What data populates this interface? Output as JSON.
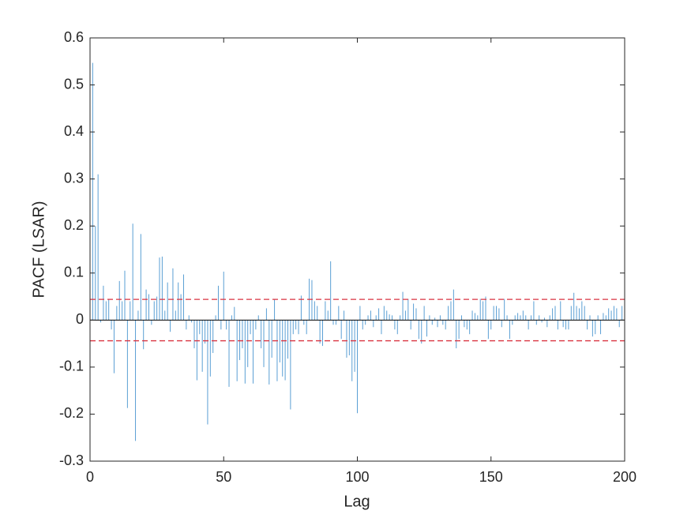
{
  "chart_data": {
    "type": "stem",
    "xlabel": "Lag",
    "ylabel": "PACF (LSAR)",
    "xlim": [
      0,
      200
    ],
    "xticks": [
      0,
      50,
      100,
      150,
      200
    ],
    "ylim": [
      -0.3,
      0.6
    ],
    "yticks": [
      -0.3,
      -0.2,
      -0.1,
      0,
      0.1,
      0.2,
      0.3,
      0.4,
      0.5,
      0.6
    ],
    "color": "#5a9fd4",
    "bounds": [
      0.044,
      -0.044
    ],
    "bounds_color": "#d93340",
    "x": [
      1,
      2,
      3,
      4,
      5,
      6,
      7,
      8,
      9,
      10,
      11,
      12,
      13,
      14,
      15,
      16,
      17,
      18,
      19,
      20,
      21,
      22,
      23,
      24,
      25,
      26,
      27,
      28,
      29,
      30,
      31,
      32,
      33,
      34,
      35,
      36,
      37,
      38,
      39,
      40,
      41,
      42,
      43,
      44,
      45,
      46,
      47,
      48,
      49,
      50,
      51,
      52,
      53,
      54,
      55,
      56,
      57,
      58,
      59,
      60,
      61,
      62,
      63,
      64,
      65,
      66,
      67,
      68,
      69,
      70,
      71,
      72,
      73,
      74,
      75,
      76,
      77,
      78,
      79,
      80,
      81,
      82,
      83,
      84,
      85,
      86,
      87,
      88,
      89,
      90,
      91,
      92,
      93,
      94,
      95,
      96,
      97,
      98,
      99,
      100,
      101,
      102,
      103,
      104,
      105,
      106,
      107,
      108,
      109,
      110,
      111,
      112,
      113,
      114,
      115,
      116,
      117,
      118,
      119,
      120,
      121,
      122,
      123,
      124,
      125,
      126,
      127,
      128,
      129,
      130,
      131,
      132,
      133,
      134,
      135,
      136,
      137,
      138,
      139,
      140,
      141,
      142,
      143,
      144,
      145,
      146,
      147,
      148,
      149,
      150,
      151,
      152,
      153,
      154,
      155,
      156,
      157,
      158,
      159,
      160,
      161,
      162,
      163,
      164,
      165,
      166,
      167,
      168,
      169,
      170,
      171,
      172,
      173,
      174,
      175,
      176,
      177,
      178,
      179,
      180,
      181,
      182,
      183,
      184,
      185,
      186,
      187,
      188,
      189,
      190,
      191,
      192,
      193,
      194,
      195,
      196,
      197,
      198,
      199,
      200
    ],
    "values": [
      0.547,
      0.2,
      0.31,
      -0.005,
      0.073,
      0.04,
      0.045,
      -0.02,
      -0.113,
      0.03,
      0.083,
      0.04,
      0.105,
      -0.187,
      0.04,
      0.205,
      -0.257,
      0.02,
      0.183,
      -0.062,
      0.065,
      0.055,
      -0.01,
      0.04,
      0.05,
      0.133,
      0.135,
      0.02,
      0.08,
      -0.025,
      0.11,
      0.02,
      0.08,
      0.055,
      0.097,
      -0.02,
      0.01,
      -0.005,
      -0.06,
      -0.128,
      -0.03,
      -0.11,
      -0.05,
      -0.222,
      -0.12,
      -0.07,
      0.01,
      0.073,
      -0.02,
      0.103,
      -0.02,
      -0.142,
      0.01,
      0.028,
      -0.13,
      -0.085,
      -0.06,
      -0.135,
      -0.1,
      -0.03,
      -0.135,
      -0.02,
      0.01,
      -0.06,
      -0.1,
      0.025,
      -0.137,
      -0.08,
      0.045,
      -0.13,
      -0.09,
      -0.12,
      -0.128,
      -0.082,
      -0.19,
      -0.03,
      -0.02,
      -0.03,
      0.052,
      -0.01,
      -0.03,
      0.088,
      0.085,
      0.04,
      0.03,
      -0.05,
      -0.055,
      0.04,
      0.02,
      0.125,
      -0.01,
      -0.01,
      0.03,
      -0.04,
      0.02,
      -0.08,
      -0.075,
      -0.13,
      -0.11,
      -0.198,
      0.03,
      -0.02,
      -0.01,
      0.01,
      0.02,
      -0.015,
      0.01,
      0.025,
      -0.03,
      0.03,
      0.02,
      0.012,
      0.01,
      -0.02,
      -0.03,
      0.01,
      0.06,
      0.02,
      0.045,
      -0.02,
      0.035,
      0.025,
      -0.04,
      -0.05,
      0.03,
      -0.035,
      0.01,
      -0.01,
      0.005,
      -0.015,
      0.01,
      -0.01,
      -0.02,
      0.03,
      0.04,
      0.065,
      -0.06,
      -0.04,
      0.01,
      -0.015,
      -0.02,
      -0.03,
      0.02,
      0.015,
      0.01,
      0.045,
      0.04,
      0.05,
      -0.04,
      -0.02,
      0.03,
      0.03,
      0.025,
      -0.015,
      0.045,
      0.01,
      -0.04,
      -0.01,
      0.01,
      0.015,
      0.01,
      0.02,
      0.01,
      -0.02,
      0.01,
      0.04,
      -0.01,
      0.01,
      -0.005,
      0.005,
      -0.015,
      0.01,
      0.025,
      0.03,
      -0.02,
      0.04,
      -0.015,
      -0.02,
      -0.02,
      0.03,
      0.058,
      0.03,
      0.025,
      0.04,
      0.03,
      -0.02,
      0.01,
      -0.035,
      -0.03,
      0.01,
      -0.03,
      0.015,
      0.01,
      0.025,
      0.02,
      0.03,
      0.025,
      -0.015,
      0.03,
      0.015
    ]
  }
}
